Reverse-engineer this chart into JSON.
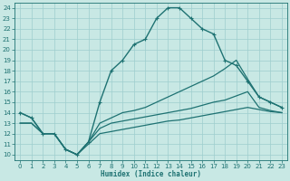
{
  "xlabel": "Humidex (Indice chaleur)",
  "background_color": "#c8e8e4",
  "grid_color": "#9ecece",
  "line_color": "#1e7272",
  "xlim": [
    -0.5,
    23.5
  ],
  "ylim": [
    9.5,
    24.5
  ],
  "xticks": [
    0,
    1,
    2,
    3,
    4,
    5,
    6,
    7,
    8,
    9,
    10,
    11,
    12,
    13,
    14,
    15,
    16,
    17,
    18,
    19,
    20,
    21,
    22,
    23
  ],
  "yticks": [
    10,
    11,
    12,
    13,
    14,
    15,
    16,
    17,
    18,
    19,
    20,
    21,
    22,
    23,
    24
  ],
  "line1_x": [
    0,
    1,
    2,
    3,
    4,
    5,
    6,
    7,
    8,
    9,
    10,
    11,
    12,
    13,
    14,
    15,
    16,
    17,
    18,
    19,
    20,
    21,
    22,
    23
  ],
  "line1_y": [
    14,
    13.5,
    12,
    12,
    10.5,
    10,
    11.2,
    15,
    18,
    19,
    20.5,
    21,
    23,
    24,
    24,
    23,
    22,
    21.5,
    19,
    18.5,
    17,
    15.5,
    15,
    14.5
  ],
  "line2_x": [
    0,
    1,
    2,
    3,
    4,
    5,
    6,
    7,
    8,
    9,
    10,
    11,
    12,
    13,
    14,
    15,
    16,
    17,
    18,
    19,
    20,
    21,
    22,
    23
  ],
  "line2_y": [
    14,
    13.5,
    12,
    12,
    10.5,
    10,
    11.2,
    13,
    13.5,
    14,
    14.2,
    14.5,
    15,
    15.5,
    16,
    16.5,
    17,
    17.5,
    18.2,
    19,
    17.2,
    15.5,
    15,
    14.5
  ],
  "line3_x": [
    0,
    1,
    2,
    3,
    4,
    5,
    6,
    7,
    8,
    9,
    10,
    11,
    12,
    13,
    14,
    15,
    16,
    17,
    18,
    19,
    20,
    21,
    22,
    23
  ],
  "line3_y": [
    13,
    13,
    12,
    12,
    10.5,
    10,
    11.2,
    12.5,
    13,
    13.2,
    13.4,
    13.6,
    13.8,
    14,
    14.2,
    14.4,
    14.7,
    15,
    15.2,
    15.6,
    16,
    14.5,
    14.2,
    14
  ],
  "line4_x": [
    0,
    1,
    2,
    3,
    4,
    5,
    6,
    7,
    8,
    9,
    10,
    11,
    12,
    13,
    14,
    15,
    16,
    17,
    18,
    19,
    20,
    21,
    22,
    23
  ],
  "line4_y": [
    13,
    13,
    12,
    12,
    10.5,
    10,
    11,
    12,
    12.2,
    12.4,
    12.6,
    12.8,
    13,
    13.2,
    13.3,
    13.5,
    13.7,
    13.9,
    14.1,
    14.3,
    14.5,
    14.3,
    14.1,
    14
  ]
}
